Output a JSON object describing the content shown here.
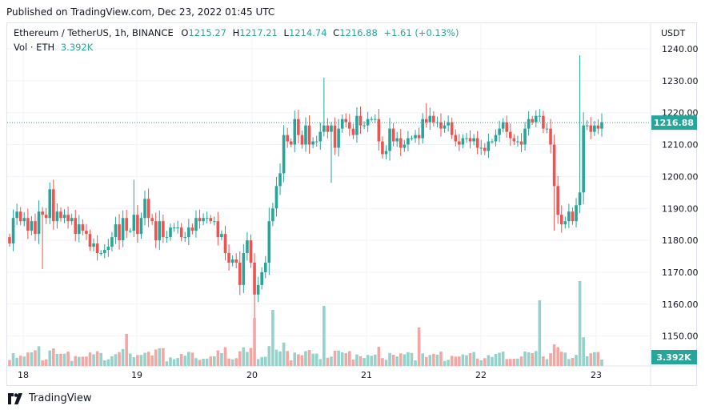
{
  "published": "Published on TradingView.com, Dec 23, 2022 01:45 UTC",
  "legend": {
    "symbol": "Ethereum / TetherUS, 1h, BINANCE",
    "o_label": "O",
    "o": "1215.27",
    "h_label": "H",
    "h": "1217.21",
    "l_label": "L",
    "l": "1214.74",
    "c_label": "C",
    "c": "1216.88",
    "change": "+1.61 (+0.13%)"
  },
  "volume": {
    "label": "Vol · ETH",
    "value": "3.392K"
  },
  "currency": "USDT",
  "footer": {
    "brand": "TradingView"
  },
  "colors": {
    "up": "#26a69a",
    "down": "#ef5350",
    "up_vol": "#94d2cb",
    "down_vol": "#f3a7a5",
    "grid": "#f0f3fa",
    "price_line": "#26a69a"
  },
  "chart_data": {
    "type": "candlestick",
    "y_ticks": [
      1150,
      1160,
      1170,
      1180,
      1190,
      1200,
      1210,
      1220,
      1230,
      1240
    ],
    "y_tick_labels": [
      "1150.00",
      "1160.00",
      "1170.00",
      "1180.00",
      "1190.00",
      "1200.00",
      "1210.00",
      "1220.00",
      "1230.00",
      "1240.00"
    ],
    "ylim": [
      1141,
      1247
    ],
    "x_labels": [
      "18",
      "19",
      "20",
      "21",
      "22",
      "23"
    ],
    "last_price": 1216.88,
    "last_price_label": "1216.88",
    "volume_label": "3.392K",
    "closes": [
      1179,
      1187,
      1189,
      1186,
      1187,
      1183,
      1186,
      1182,
      1189,
      1188,
      1187,
      1196,
      1186,
      1189,
      1187,
      1188,
      1186,
      1187,
      1182,
      1185,
      1183,
      1182,
      1178,
      1179,
      1176,
      1176,
      1177,
      1178,
      1181,
      1185,
      1180,
      1187,
      1183,
      1183,
      1188,
      1182,
      1187,
      1193,
      1187,
      1186,
      1180,
      1186,
      1181,
      1181,
      1184,
      1184,
      1184,
      1181,
      1181,
      1184,
      1183,
      1187,
      1186,
      1187,
      1187,
      1186,
      1186,
      1181,
      1182,
      1176,
      1173,
      1174,
      1173,
      1166,
      1176,
      1180,
      1173,
      1163,
      1166,
      1170,
      1173,
      1186,
      1190,
      1197,
      1201,
      1213,
      1211,
      1210,
      1218,
      1213,
      1210,
      1216,
      1210,
      1211,
      1211,
      1214,
      1216,
      1214,
      1216,
      1209,
      1215,
      1218,
      1217,
      1215,
      1213,
      1219,
      1216,
      1216,
      1218,
      1218,
      1218,
      1211,
      1207,
      1208,
      1215,
      1211,
      1212,
      1209,
      1210,
      1212,
      1212,
      1213,
      1212,
      1218,
      1217,
      1219,
      1217,
      1217,
      1215,
      1216,
      1217,
      1213,
      1211,
      1210,
      1212,
      1212,
      1211,
      1212,
      1209,
      1209,
      1208,
      1211,
      1211,
      1213,
      1215,
      1217,
      1214,
      1212,
      1211,
      1211,
      1210,
      1215,
      1218,
      1217,
      1219,
      1219,
      1215,
      1215,
      1210,
      1197,
      1188,
      1185,
      1186,
      1189,
      1186,
      1191,
      1195,
      1216,
      1216,
      1214,
      1216,
      1215,
      1217
    ]
  }
}
